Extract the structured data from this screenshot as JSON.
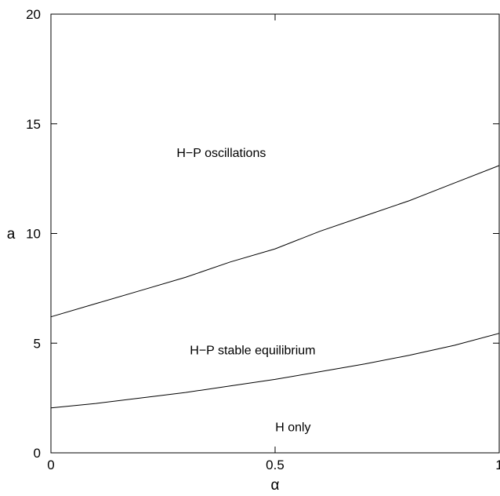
{
  "chart_data": {
    "type": "line",
    "title": "",
    "xlabel": "α",
    "ylabel": "a",
    "xlim": [
      0,
      1
    ],
    "ylim": [
      0,
      20
    ],
    "xticks": [
      {
        "value": 0,
        "label": "0"
      },
      {
        "value": 0.5,
        "label": "0.5"
      },
      {
        "value": 1,
        "label": "1"
      }
    ],
    "yticks": [
      {
        "value": 0,
        "label": "0"
      },
      {
        "value": 5,
        "label": "5"
      },
      {
        "value": 10,
        "label": "10"
      },
      {
        "value": 15,
        "label": "15"
      },
      {
        "value": 20,
        "label": "20"
      }
    ],
    "grid": false,
    "series": [
      {
        "x": [
          0,
          0.1,
          0.2,
          0.3,
          0.4,
          0.5,
          0.6,
          0.7,
          0.8,
          0.9,
          1.0
        ],
        "y": [
          6.2,
          6.8,
          7.4,
          8.0,
          8.7,
          9.3,
          10.1,
          10.8,
          11.5,
          12.3,
          13.1
        ]
      },
      {
        "x": [
          0,
          0.1,
          0.2,
          0.3,
          0.4,
          0.5,
          0.6,
          0.7,
          0.8,
          0.9,
          1.0
        ],
        "y": [
          2.05,
          2.25,
          2.5,
          2.75,
          3.05,
          3.35,
          3.7,
          4.05,
          4.45,
          4.9,
          5.45
        ]
      }
    ],
    "annotations": [
      {
        "text": "H−P oscillations",
        "x": 0.38,
        "y": 13.7
      },
      {
        "text": "H−P stable equilibrium",
        "x": 0.45,
        "y": 4.7
      },
      {
        "text": "H only",
        "x": 0.54,
        "y": 1.2
      }
    ]
  }
}
